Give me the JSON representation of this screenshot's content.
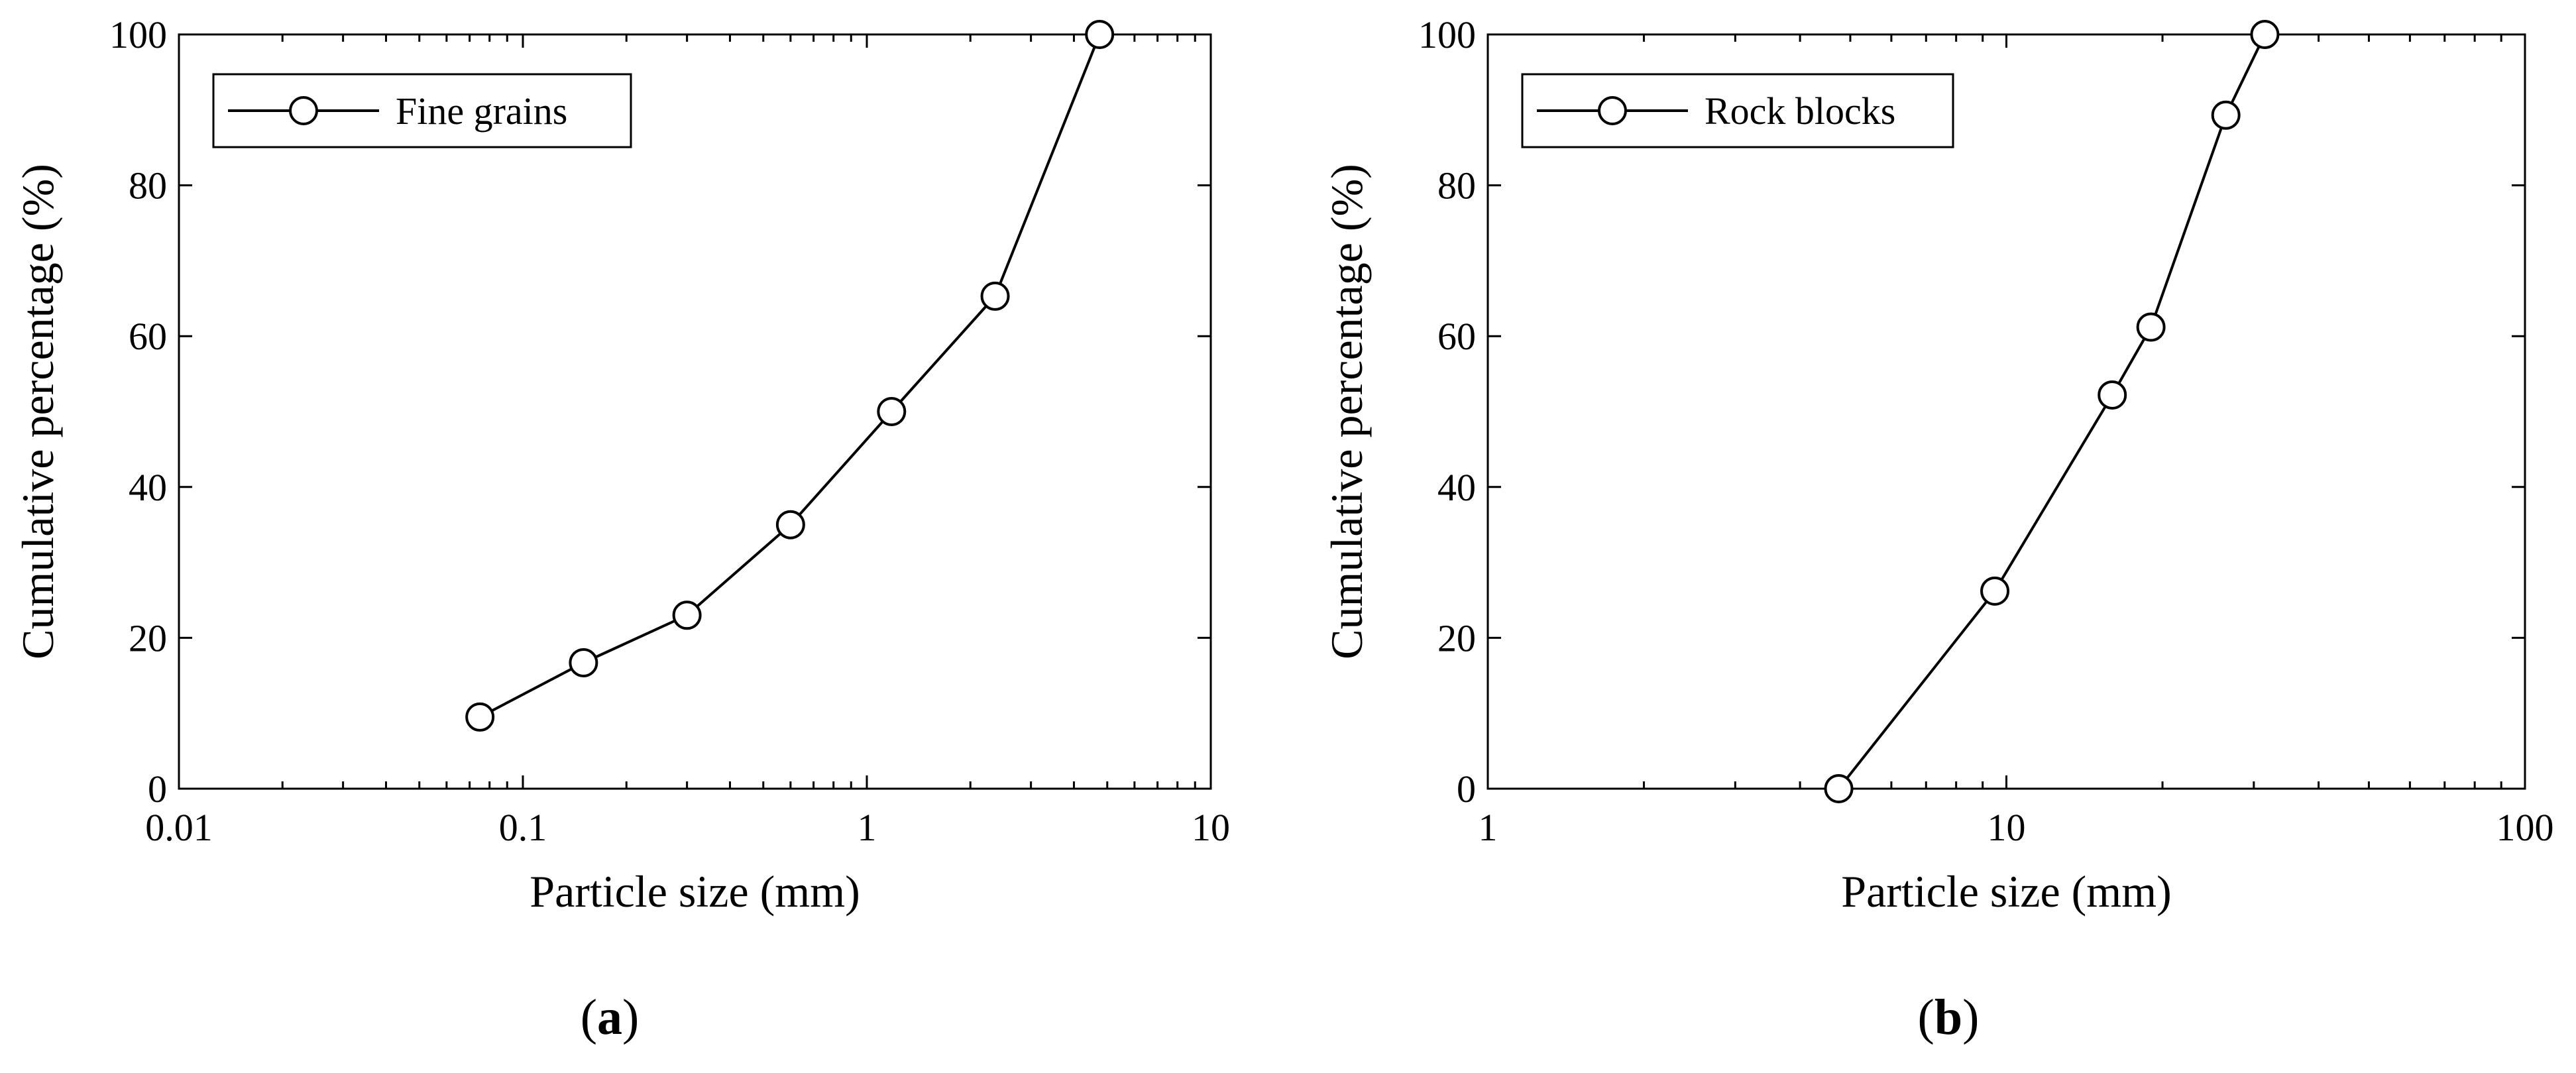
{
  "chart_data": [
    {
      "type": "line",
      "xscale": "log",
      "xlim": [
        0.01,
        10
      ],
      "ylim": [
        0,
        100
      ],
      "xticks": [
        0.01,
        0.1,
        1,
        10
      ],
      "xtick_labels": [
        "0.01",
        "0.1",
        "1",
        "10"
      ],
      "yticks": [
        0,
        20,
        40,
        60,
        80,
        100
      ],
      "ytick_labels": [
        "0",
        "20",
        "40",
        "60",
        "80",
        "100"
      ],
      "xlabel": "Particle size (mm)",
      "ylabel": "Cumulative percentage (%)",
      "legend_position": "top-left",
      "caption": {
        "open": "(",
        "letter": "a",
        "close": ")"
      },
      "marker": "open-circle",
      "line_color": "#000000",
      "series": [
        {
          "name": "Fine grains",
          "x": [
            0.075,
            0.15,
            0.3,
            0.6,
            1.18,
            2.36,
            4.75
          ],
          "y": [
            9.5,
            16.7,
            23.0,
            35.0,
            50.0,
            65.3,
            100.0
          ]
        }
      ]
    },
    {
      "type": "line",
      "xscale": "log",
      "xlim": [
        1,
        100
      ],
      "ylim": [
        0,
        100
      ],
      "xticks": [
        1,
        10,
        100
      ],
      "xtick_labels": [
        "1",
        "10",
        "100"
      ],
      "yticks": [
        0,
        20,
        40,
        60,
        80,
        100
      ],
      "ytick_labels": [
        "0",
        "20",
        "40",
        "60",
        "80",
        "100"
      ],
      "xlabel": "Particle size (mm)",
      "ylabel": "Cumulative percentage (%)",
      "legend_position": "top-left",
      "caption": {
        "open": "(",
        "letter": "b",
        "close": ")"
      },
      "marker": "open-circle",
      "line_color": "#000000",
      "series": [
        {
          "name": "Rock blocks",
          "x": [
            4.75,
            9.5,
            16,
            19,
            26.5,
            31.5
          ],
          "y": [
            0.0,
            26.2,
            52.2,
            61.2,
            89.3,
            100.0
          ]
        }
      ]
    }
  ]
}
